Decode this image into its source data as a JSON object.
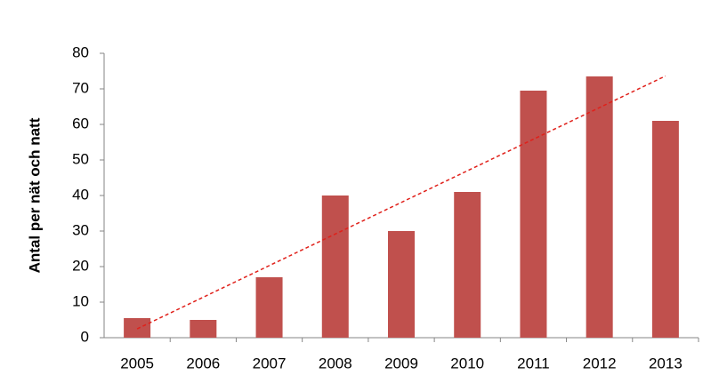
{
  "chart_data": {
    "type": "bar",
    "y_label": "Antal per nät och natt",
    "categories": [
      "2005",
      "2006",
      "2007",
      "2008",
      "2009",
      "2010",
      "2011",
      "2012",
      "2013"
    ],
    "values": [
      5.5,
      5,
      17,
      40,
      30,
      41,
      69.5,
      73.5,
      61
    ],
    "color": "#c0504d",
    "ylim": [
      0,
      80
    ],
    "yticks": [
      0,
      10,
      20,
      30,
      40,
      50,
      60,
      70,
      80
    ],
    "grid": false,
    "trendline": "linear",
    "trendline_color": "#e0201a"
  }
}
